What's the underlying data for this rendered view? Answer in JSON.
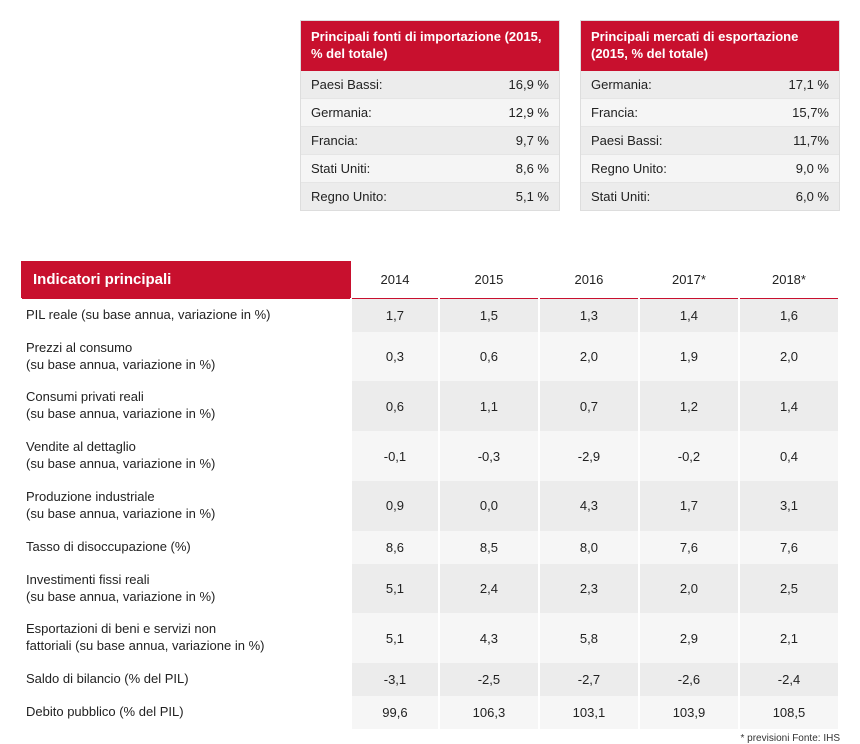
{
  "imports": {
    "title": "Principali fonti di importazione (2015, % del totale)",
    "rows": [
      {
        "label": "Paesi Bassi:",
        "value": "16,9 %"
      },
      {
        "label": "Germania:",
        "value": "12,9 %"
      },
      {
        "label": "Francia:",
        "value": "9,7 %"
      },
      {
        "label": "Stati Uniti:",
        "value": "8,6 %"
      },
      {
        "label": "Regno Unito:",
        "value": "5,1 %"
      }
    ]
  },
  "exports": {
    "title": "Principali mercati di esportazione (2015, % del totale)",
    "rows": [
      {
        "label": "Germania:",
        "value": "17,1 %"
      },
      {
        "label": "Francia:",
        "value": "15,7%"
      },
      {
        "label": "Paesi Bassi:",
        "value": "11,7%"
      },
      {
        "label": "Regno Unito:",
        "value": "9,0 %"
      },
      {
        "label": "Stati Uniti:",
        "value": "6,0 %"
      }
    ]
  },
  "indicators": {
    "header_label": "Indicatori principali",
    "years": [
      "2014",
      "2015",
      "2016",
      "2017*",
      "2018*"
    ],
    "rows": [
      {
        "label": "PIL reale (su base annua, variazione in %)",
        "values": [
          "1,7",
          "1,5",
          "1,3",
          "1,4",
          "1,6"
        ]
      },
      {
        "label": "Prezzi al consumo\n(su base annua, variazione in %)",
        "values": [
          "0,3",
          "0,6",
          "2,0",
          "1,9",
          "2,0"
        ]
      },
      {
        "label": "Consumi privati reali\n(su base annua, variazione in %)",
        "values": [
          "0,6",
          "1,1",
          "0,7",
          "1,2",
          "1,4"
        ]
      },
      {
        "label": "Vendite al dettaglio\n(su base annua, variazione in %)",
        "values": [
          "-0,1",
          "-0,3",
          "-2,9",
          "-0,2",
          "0,4"
        ]
      },
      {
        "label": "Produzione industriale\n(su base annua, variazione in %)",
        "values": [
          "0,9",
          "0,0",
          "4,3",
          "1,7",
          "3,1"
        ]
      },
      {
        "label": "Tasso di disoccupazione (%)",
        "values": [
          "8,6",
          "8,5",
          "8,0",
          "7,6",
          "7,6"
        ]
      },
      {
        "label": "Investimenti fissi reali\n(su base annua, variazione in %)",
        "values": [
          "5,1",
          "2,4",
          "2,3",
          "2,0",
          "2,5"
        ]
      },
      {
        "label": "Esportazioni di beni e servizi non\nfattoriali (su base annua, variazione in %)",
        "values": [
          "5,1",
          "4,3",
          "5,8",
          "2,9",
          "2,1"
        ]
      },
      {
        "label": "Saldo di bilancio (% del PIL)",
        "values": [
          "-3,1",
          "-2,5",
          "-2,7",
          "-2,6",
          "-2,4"
        ]
      },
      {
        "label": "Debito pubblico (% del PIL)",
        "values": [
          "99,6",
          "106,3",
          "103,1",
          "103,9",
          "108,5"
        ]
      }
    ],
    "footnote": "* previsioni   Fonte: IHS"
  },
  "colors": {
    "accent": "#c8102e",
    "row_alt1": "#ececec",
    "row_alt2": "#f6f6f6",
    "text": "#222222",
    "bg": "#ffffff"
  }
}
